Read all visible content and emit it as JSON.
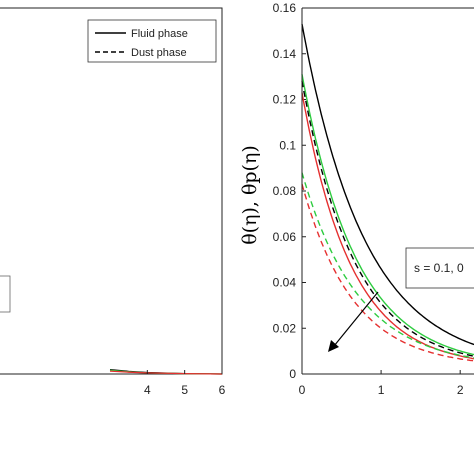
{
  "chart_data": [
    {
      "type": "line",
      "position": "left",
      "xlim": [
        0,
        6
      ],
      "ylim": [
        0,
        1
      ],
      "x_ticks": [
        4,
        5,
        6
      ],
      "legend": {
        "placement": "top-right",
        "entries": [
          {
            "label": "Fluid phase",
            "style": "solid"
          },
          {
            "label": "Dust phase",
            "style": "dashed"
          }
        ]
      },
      "series": [
        {
          "color": "#000000",
          "style": "solid",
          "x": [
            3,
            3.5,
            4,
            5,
            6
          ],
          "y": [
            0.012,
            0.007,
            0.004,
            0.001,
            0.0
          ]
        },
        {
          "color": "#2ecc40",
          "style": "solid",
          "x": [
            3,
            3.5,
            4,
            5,
            6
          ],
          "y": [
            0.01,
            0.006,
            0.003,
            0.001,
            0.0
          ]
        },
        {
          "color": "#e53030",
          "style": "solid",
          "x": [
            3,
            3.5,
            4,
            5,
            6
          ],
          "y": [
            0.008,
            0.005,
            0.003,
            0.001,
            0.0
          ]
        }
      ]
    },
    {
      "type": "line",
      "position": "right",
      "ylabel": "θ(η), θp(η)",
      "xlim": [
        0,
        2.2
      ],
      "ylim": [
        0,
        0.16
      ],
      "x_ticks": [
        0,
        1,
        2
      ],
      "y_ticks": [
        0,
        0.02,
        0.04,
        0.06,
        0.08,
        0.1,
        0.12,
        0.14,
        0.16
      ],
      "y_tick_labels": [
        "0",
        "0.02",
        "0.04",
        "0.06",
        "0.08",
        "0.1",
        "0.12",
        "0.14",
        "0.16"
      ],
      "annotation": {
        "text": "s = 0.1, 0"
      },
      "series": [
        {
          "color": "#000000",
          "style": "solid",
          "y0": 0.15,
          "k": 1.25
        },
        {
          "color": "#2ecc40",
          "style": "solid",
          "y0": 0.128,
          "k": 1.45
        },
        {
          "color": "#e53030",
          "style": "solid",
          "y0": 0.12,
          "k": 1.6
        },
        {
          "color": "#000000",
          "style": "dashed",
          "y0": 0.125,
          "k": 1.5
        },
        {
          "color": "#2ecc40",
          "style": "dashed",
          "y0": 0.085,
          "k": 1.4
        },
        {
          "color": "#e53030",
          "style": "dashed",
          "y0": 0.08,
          "k": 1.55
        }
      ]
    }
  ]
}
